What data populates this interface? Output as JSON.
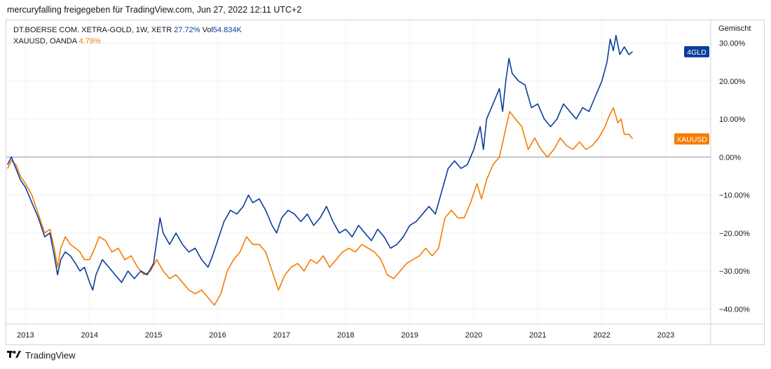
{
  "header": {
    "attribution": "mercuryfalling freigegeben für TradingView.com, Jun 27, 2022 12:11 UTC+2"
  },
  "legend": {
    "series1_label": "DT.BOERSE COM. XETRA-GOLD, 1W, XETR",
    "series1_change": "27.72%",
    "series1_vol_label": "Vol",
    "series1_vol": "54.834K",
    "series2_label": "XAUUSD, OANDA",
    "series2_change": "4.79%"
  },
  "footer": {
    "brand": "TradingView",
    "logo_icon": "tradingview-logo-icon"
  },
  "chart_data": {
    "type": "line",
    "scale_label": "Gemischt",
    "y_unit": "%",
    "ylim": [
      -44,
      36
    ],
    "y_ticks": [
      30,
      20,
      10,
      0,
      -10,
      -20,
      -30,
      -40
    ],
    "y_tick_labels": [
      "30.00%",
      "20.00%",
      "10.00%",
      "0.00%",
      "−10.00%",
      "−20.00%",
      "−30.00%",
      "−40.00%"
    ],
    "xlim": [
      2012.7,
      2023.7
    ],
    "x_ticks": [
      2013,
      2014,
      2015,
      2016,
      2017,
      2018,
      2019,
      2020,
      2021,
      2022,
      2023
    ],
    "x_tick_labels": [
      "2013",
      "2014",
      "2015",
      "2016",
      "2017",
      "2018",
      "2019",
      "2020",
      "2021",
      "2022",
      "2023"
    ],
    "grid": true,
    "zero_line": true,
    "series": [
      {
        "name": "4GLD",
        "color": "#0d3c9e",
        "last_value_label": "4GLD",
        "last_value": 27.72,
        "points": [
          [
            2012.72,
            -2
          ],
          [
            2012.78,
            0
          ],
          [
            2012.85,
            -3
          ],
          [
            2012.92,
            -6
          ],
          [
            2013.0,
            -8
          ],
          [
            2013.1,
            -12
          ],
          [
            2013.2,
            -16
          ],
          [
            2013.3,
            -21
          ],
          [
            2013.38,
            -20
          ],
          [
            2013.45,
            -26
          ],
          [
            2013.5,
            -31
          ],
          [
            2013.55,
            -27
          ],
          [
            2013.62,
            -25
          ],
          [
            2013.7,
            -26
          ],
          [
            2013.78,
            -28
          ],
          [
            2013.85,
            -30
          ],
          [
            2013.92,
            -29
          ],
          [
            2014.0,
            -33
          ],
          [
            2014.05,
            -35
          ],
          [
            2014.1,
            -31
          ],
          [
            2014.2,
            -27
          ],
          [
            2014.3,
            -29
          ],
          [
            2014.4,
            -31
          ],
          [
            2014.5,
            -33
          ],
          [
            2014.6,
            -30
          ],
          [
            2014.7,
            -32
          ],
          [
            2014.8,
            -30
          ],
          [
            2014.9,
            -31
          ],
          [
            2015.0,
            -28
          ],
          [
            2015.05,
            -22
          ],
          [
            2015.1,
            -16
          ],
          [
            2015.15,
            -20
          ],
          [
            2015.25,
            -23
          ],
          [
            2015.35,
            -20
          ],
          [
            2015.45,
            -23
          ],
          [
            2015.55,
            -25
          ],
          [
            2015.65,
            -24
          ],
          [
            2015.75,
            -27
          ],
          [
            2015.85,
            -29
          ],
          [
            2015.92,
            -26
          ],
          [
            2016.0,
            -22
          ],
          [
            2016.1,
            -17
          ],
          [
            2016.2,
            -14
          ],
          [
            2016.3,
            -15
          ],
          [
            2016.4,
            -13
          ],
          [
            2016.48,
            -10
          ],
          [
            2016.55,
            -12
          ],
          [
            2016.65,
            -11
          ],
          [
            2016.75,
            -14
          ],
          [
            2016.85,
            -18
          ],
          [
            2016.92,
            -20
          ],
          [
            2017.0,
            -16
          ],
          [
            2017.1,
            -14
          ],
          [
            2017.2,
            -15
          ],
          [
            2017.3,
            -17
          ],
          [
            2017.4,
            -15
          ],
          [
            2017.5,
            -18
          ],
          [
            2017.6,
            -16
          ],
          [
            2017.7,
            -13
          ],
          [
            2017.8,
            -17
          ],
          [
            2017.9,
            -20
          ],
          [
            2018.0,
            -19
          ],
          [
            2018.1,
            -21
          ],
          [
            2018.2,
            -18
          ],
          [
            2018.3,
            -20
          ],
          [
            2018.4,
            -22
          ],
          [
            2018.5,
            -19
          ],
          [
            2018.6,
            -21
          ],
          [
            2018.7,
            -24
          ],
          [
            2018.8,
            -23
          ],
          [
            2018.9,
            -21
          ],
          [
            2019.0,
            -18
          ],
          [
            2019.1,
            -17
          ],
          [
            2019.2,
            -15
          ],
          [
            2019.3,
            -13
          ],
          [
            2019.4,
            -15
          ],
          [
            2019.5,
            -9
          ],
          [
            2019.6,
            -3
          ],
          [
            2019.7,
            -1
          ],
          [
            2019.8,
            -3
          ],
          [
            2019.9,
            -2
          ],
          [
            2020.0,
            2
          ],
          [
            2020.1,
            8
          ],
          [
            2020.15,
            2
          ],
          [
            2020.2,
            10
          ],
          [
            2020.3,
            14
          ],
          [
            2020.4,
            18
          ],
          [
            2020.45,
            12
          ],
          [
            2020.5,
            20
          ],
          [
            2020.55,
            26
          ],
          [
            2020.6,
            22
          ],
          [
            2020.7,
            20
          ],
          [
            2020.8,
            19
          ],
          [
            2020.9,
            13
          ],
          [
            2021.0,
            14
          ],
          [
            2021.1,
            10
          ],
          [
            2021.2,
            8
          ],
          [
            2021.3,
            10
          ],
          [
            2021.4,
            14
          ],
          [
            2021.5,
            12
          ],
          [
            2021.6,
            10
          ],
          [
            2021.7,
            13
          ],
          [
            2021.8,
            12
          ],
          [
            2021.9,
            16
          ],
          [
            2022.0,
            20
          ],
          [
            2022.08,
            25
          ],
          [
            2022.13,
            31
          ],
          [
            2022.18,
            28
          ],
          [
            2022.22,
            32
          ],
          [
            2022.28,
            27
          ],
          [
            2022.35,
            29
          ],
          [
            2022.42,
            27
          ],
          [
            2022.48,
            27.72
          ]
        ]
      },
      {
        "name": "XAUUSD",
        "color": "#f57c00",
        "last_value_label": "XAUUSD",
        "last_value": 4.79,
        "points": [
          [
            2012.72,
            -3
          ],
          [
            2012.78,
            -1
          ],
          [
            2012.85,
            -2
          ],
          [
            2012.92,
            -5
          ],
          [
            2013.0,
            -7
          ],
          [
            2013.1,
            -10
          ],
          [
            2013.2,
            -15
          ],
          [
            2013.3,
            -20
          ],
          [
            2013.38,
            -19
          ],
          [
            2013.45,
            -24
          ],
          [
            2013.5,
            -29
          ],
          [
            2013.55,
            -24
          ],
          [
            2013.62,
            -21
          ],
          [
            2013.7,
            -23
          ],
          [
            2013.78,
            -24
          ],
          [
            2013.85,
            -25
          ],
          [
            2013.92,
            -27
          ],
          [
            2014.0,
            -27
          ],
          [
            2014.08,
            -24
          ],
          [
            2014.15,
            -21
          ],
          [
            2014.25,
            -22
          ],
          [
            2014.35,
            -25
          ],
          [
            2014.45,
            -24
          ],
          [
            2014.55,
            -27
          ],
          [
            2014.65,
            -26
          ],
          [
            2014.75,
            -29
          ],
          [
            2014.85,
            -31
          ],
          [
            2014.95,
            -30
          ],
          [
            2015.05,
            -27
          ],
          [
            2015.15,
            -30
          ],
          [
            2015.25,
            -32
          ],
          [
            2015.35,
            -31
          ],
          [
            2015.45,
            -33
          ],
          [
            2015.55,
            -35
          ],
          [
            2015.65,
            -36
          ],
          [
            2015.75,
            -35
          ],
          [
            2015.85,
            -37
          ],
          [
            2015.95,
            -39
          ],
          [
            2016.05,
            -36
          ],
          [
            2016.15,
            -30
          ],
          [
            2016.25,
            -27
          ],
          [
            2016.35,
            -25
          ],
          [
            2016.45,
            -21
          ],
          [
            2016.55,
            -23
          ],
          [
            2016.65,
            -23
          ],
          [
            2016.75,
            -25
          ],
          [
            2016.85,
            -30
          ],
          [
            2016.95,
            -35
          ],
          [
            2017.05,
            -31
          ],
          [
            2017.15,
            -29
          ],
          [
            2017.25,
            -28
          ],
          [
            2017.35,
            -30
          ],
          [
            2017.45,
            -27
          ],
          [
            2017.55,
            -28
          ],
          [
            2017.65,
            -26
          ],
          [
            2017.75,
            -29
          ],
          [
            2017.85,
            -27
          ],
          [
            2017.95,
            -25
          ],
          [
            2018.05,
            -24
          ],
          [
            2018.15,
            -25
          ],
          [
            2018.25,
            -23
          ],
          [
            2018.35,
            -24
          ],
          [
            2018.45,
            -25
          ],
          [
            2018.55,
            -27
          ],
          [
            2018.65,
            -31
          ],
          [
            2018.75,
            -32
          ],
          [
            2018.85,
            -30
          ],
          [
            2018.95,
            -28
          ],
          [
            2019.05,
            -27
          ],
          [
            2019.15,
            -26
          ],
          [
            2019.25,
            -24
          ],
          [
            2019.35,
            -26
          ],
          [
            2019.45,
            -24
          ],
          [
            2019.55,
            -16
          ],
          [
            2019.65,
            -14
          ],
          [
            2019.75,
            -16
          ],
          [
            2019.85,
            -16
          ],
          [
            2019.95,
            -12
          ],
          [
            2020.05,
            -7
          ],
          [
            2020.12,
            -11
          ],
          [
            2020.2,
            -6
          ],
          [
            2020.3,
            -2
          ],
          [
            2020.4,
            0
          ],
          [
            2020.48,
            6
          ],
          [
            2020.56,
            12
          ],
          [
            2020.65,
            10
          ],
          [
            2020.75,
            8
          ],
          [
            2020.85,
            2
          ],
          [
            2020.95,
            5
          ],
          [
            2021.05,
            2
          ],
          [
            2021.15,
            0
          ],
          [
            2021.25,
            2
          ],
          [
            2021.35,
            5
          ],
          [
            2021.45,
            3
          ],
          [
            2021.55,
            2
          ],
          [
            2021.65,
            4
          ],
          [
            2021.75,
            2
          ],
          [
            2021.85,
            3
          ],
          [
            2021.95,
            5
          ],
          [
            2022.05,
            8
          ],
          [
            2022.12,
            11
          ],
          [
            2022.18,
            13
          ],
          [
            2022.25,
            9
          ],
          [
            2022.3,
            10
          ],
          [
            2022.35,
            6
          ],
          [
            2022.42,
            6
          ],
          [
            2022.48,
            4.79
          ]
        ]
      }
    ]
  }
}
